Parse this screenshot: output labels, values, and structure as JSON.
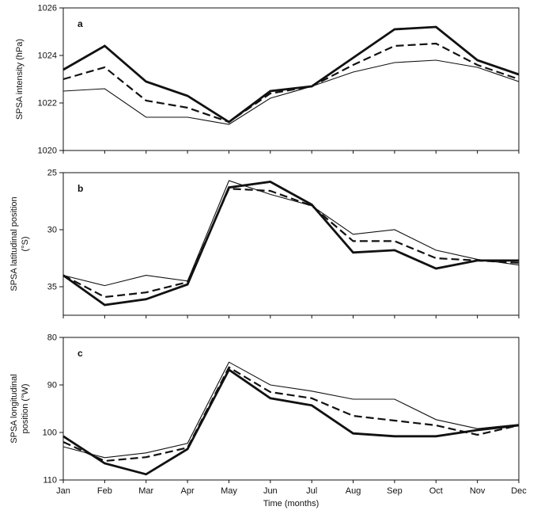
{
  "figure": {
    "background": "#ffffff",
    "line_color": "#111111",
    "xlabel": "Time (months)",
    "months": [
      "Jan",
      "Feb",
      "Mar",
      "Apr",
      "May",
      "Jun",
      "Jul",
      "Aug",
      "Sep",
      "Oct",
      "Nov",
      "Dec"
    ]
  },
  "chart_data": [
    {
      "type": "line",
      "panel": "a",
      "ylabel": "SPSA intensity (hPa)",
      "ylim": [
        1020,
        1026
      ],
      "yticks": [
        1026,
        1024,
        1022,
        1020
      ],
      "inverted": false,
      "grid": false,
      "legend": "none",
      "categories": [
        "Jan",
        "Feb",
        "Mar",
        "Apr",
        "May",
        "Jun",
        "Jul",
        "Aug",
        "Sep",
        "Oct",
        "Nov",
        "Dec"
      ],
      "series": [
        {
          "name": "thick-solid",
          "style": "solid-thick",
          "values": [
            1023.4,
            1024.4,
            1022.9,
            1022.3,
            1021.2,
            1022.5,
            1022.7,
            1023.9,
            1025.1,
            1025.2,
            1023.8,
            1023.2
          ]
        },
        {
          "name": "dashed",
          "style": "dashed",
          "values": [
            1023.0,
            1023.5,
            1022.1,
            1021.8,
            1021.2,
            1022.4,
            1022.7,
            1023.6,
            1024.4,
            1024.5,
            1023.6,
            1023.0
          ]
        },
        {
          "name": "thin-solid",
          "style": "solid-thin",
          "values": [
            1022.5,
            1022.6,
            1021.4,
            1021.4,
            1021.1,
            1022.2,
            1022.7,
            1023.3,
            1023.7,
            1023.8,
            1023.5,
            1022.9
          ]
        }
      ]
    },
    {
      "type": "line",
      "panel": "b",
      "ylabel": "SPSA latitudinal position (°S)",
      "ylim": [
        25,
        37.5
      ],
      "yticks": [
        25,
        30,
        35
      ],
      "inverted": true,
      "grid": false,
      "legend": "none",
      "categories": [
        "Jan",
        "Feb",
        "Mar",
        "Apr",
        "May",
        "Jun",
        "Jul",
        "Aug",
        "Sep",
        "Oct",
        "Nov",
        "Dec"
      ],
      "series": [
        {
          "name": "thick-solid",
          "style": "solid-thick",
          "values": [
            34.0,
            36.6,
            36.1,
            34.8,
            26.3,
            25.8,
            27.8,
            32.0,
            31.8,
            33.4,
            32.7,
            32.7
          ]
        },
        {
          "name": "dashed",
          "style": "dashed",
          "values": [
            34.0,
            35.9,
            35.5,
            34.6,
            26.4,
            26.6,
            27.9,
            31.0,
            31.0,
            32.5,
            32.7,
            32.9
          ]
        },
        {
          "name": "thin-solid",
          "style": "solid-thin",
          "values": [
            34.0,
            34.9,
            34.0,
            34.5,
            25.7,
            26.9,
            27.9,
            30.4,
            30.0,
            31.8,
            32.6,
            33.1
          ]
        }
      ]
    },
    {
      "type": "line",
      "panel": "c",
      "ylabel": "SPSA longitudinal position (°W)",
      "ylim": [
        80,
        110
      ],
      "yticks": [
        80,
        90,
        100,
        110
      ],
      "inverted": true,
      "grid": false,
      "legend": "none",
      "categories": [
        "Jan",
        "Feb",
        "Mar",
        "Apr",
        "May",
        "Jun",
        "Jul",
        "Aug",
        "Sep",
        "Oct",
        "Nov",
        "Dec"
      ],
      "series": [
        {
          "name": "thick-solid",
          "style": "solid-thick",
          "values": [
            100.8,
            106.5,
            108.8,
            103.5,
            86.8,
            92.8,
            94.3,
            100.2,
            100.8,
            100.8,
            99.5,
            98.5
          ]
        },
        {
          "name": "dashed",
          "style": "dashed",
          "values": [
            102.0,
            106.0,
            105.2,
            103.2,
            86.3,
            91.5,
            92.8,
            96.5,
            97.5,
            98.5,
            100.5,
            98.5
          ]
        },
        {
          "name": "thin-solid",
          "style": "solid-thin",
          "values": [
            103.0,
            105.3,
            104.3,
            102.3,
            85.2,
            90.0,
            91.3,
            93.0,
            93.0,
            97.3,
            99.2,
            98.3
          ]
        }
      ]
    }
  ]
}
